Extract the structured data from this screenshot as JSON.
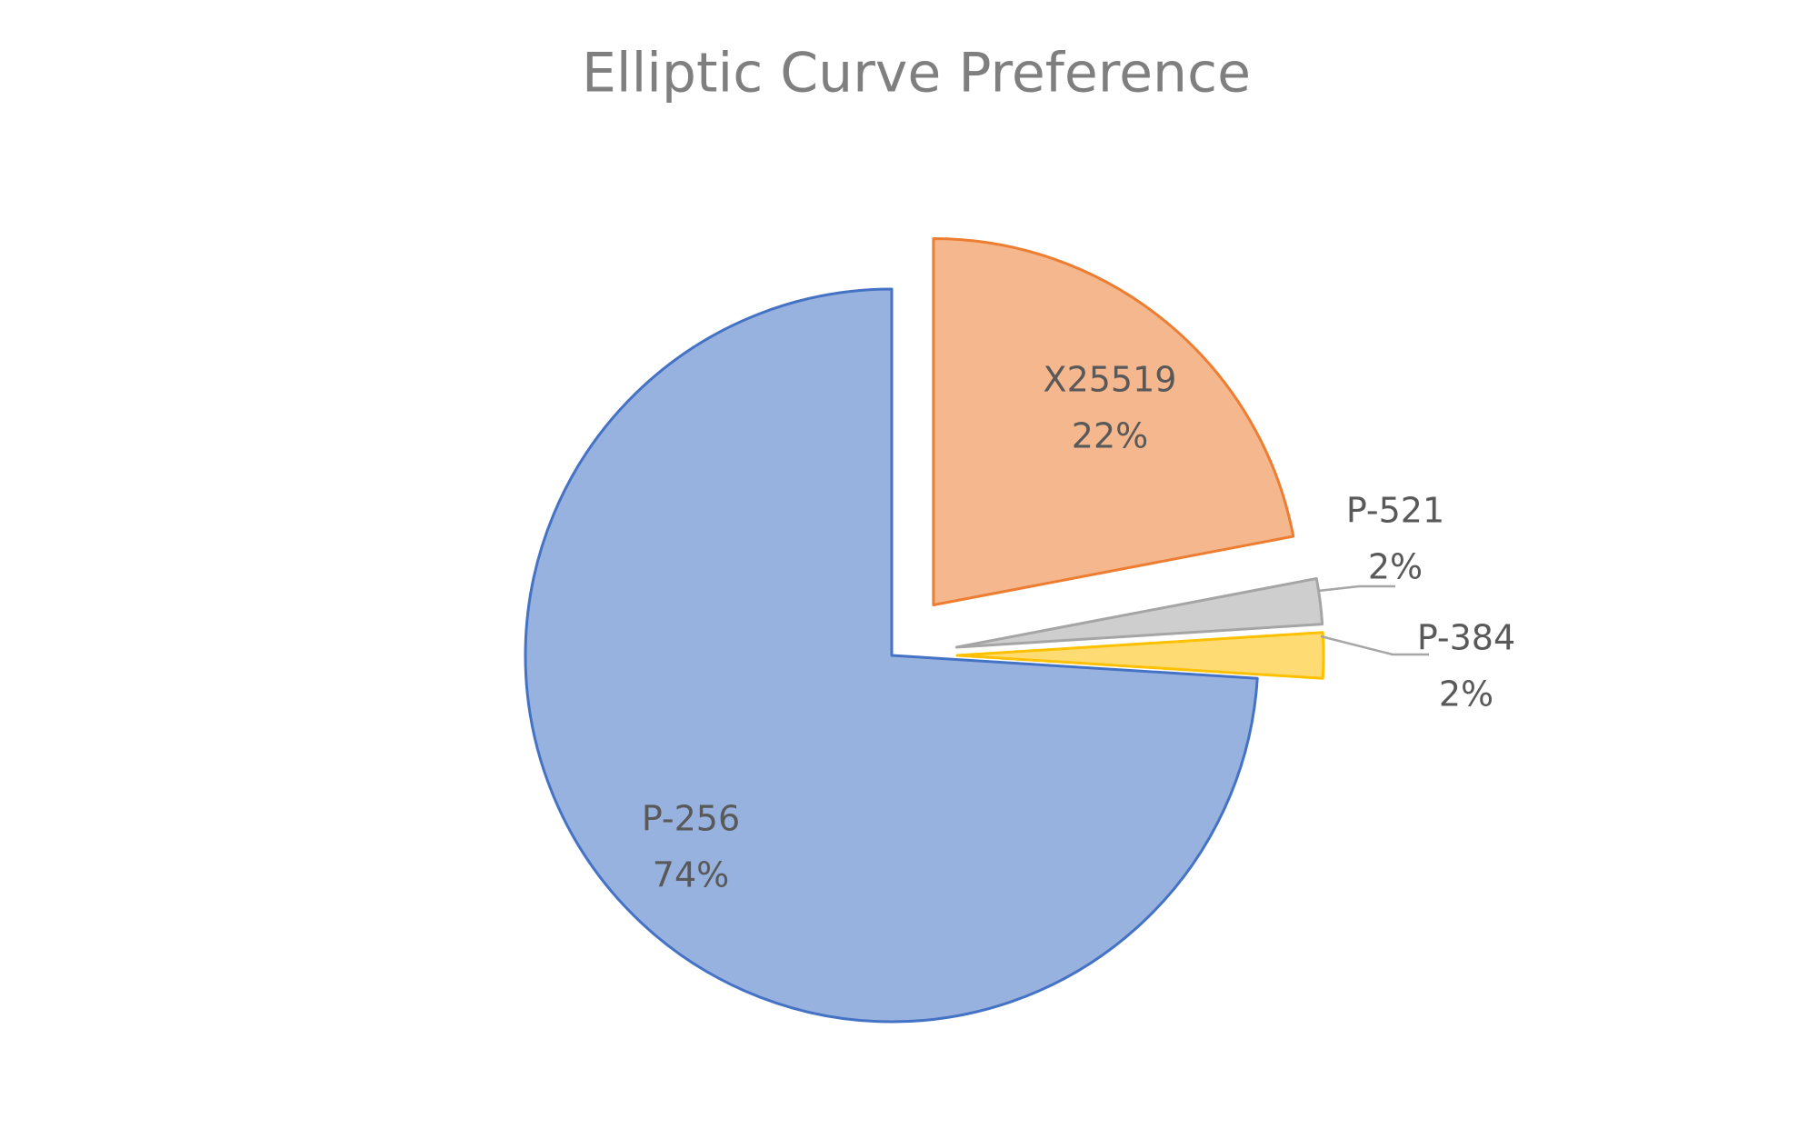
{
  "chart_data": {
    "type": "pie",
    "title": "Elliptic Curve Preference",
    "categories": [
      "X25519",
      "P-521",
      "P-384",
      "P-256"
    ],
    "values": [
      22,
      2,
      2,
      74
    ],
    "value_labels": [
      "22%",
      "2%",
      "2%",
      "74%"
    ],
    "colors": [
      "#ed7d31",
      "#a5a5a5",
      "#ffc000",
      "#4472c4"
    ],
    "exploded": [
      true,
      true,
      true,
      false
    ]
  }
}
